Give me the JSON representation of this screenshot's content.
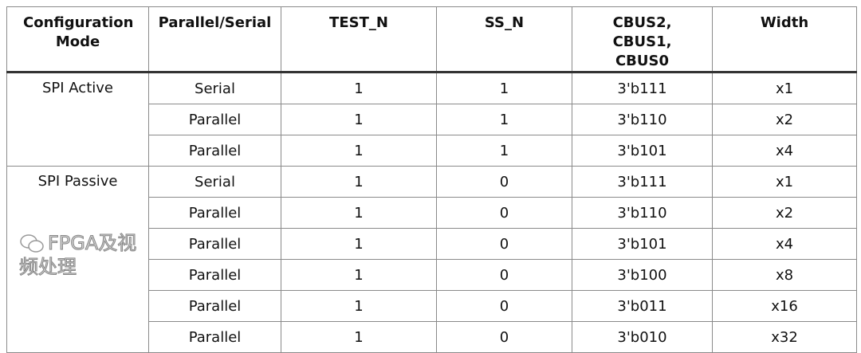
{
  "headers": [
    "Configuration Mode",
    "Parallel/Serial",
    "TEST_N",
    "SS_N",
    "CBUS2, CBUS1, CBUS0",
    "Width"
  ],
  "groups": [
    {
      "mode": "SPI Active",
      "rows": [
        [
          "Serial",
          "1",
          "1",
          "3'b111",
          "x1"
        ],
        [
          "Parallel",
          "1",
          "1",
          "3'b110",
          "x2"
        ],
        [
          "Parallel",
          "1",
          "1",
          "3'b101",
          "x4"
        ]
      ]
    },
    {
      "mode": "SPI Passive",
      "rows": [
        [
          "Serial",
          "1",
          "0",
          "3'b111",
          "x1"
        ],
        [
          "Parallel",
          "1",
          "0",
          "3'b110",
          "x2"
        ],
        [
          "Parallel",
          "1",
          "0",
          "3'b101",
          "x4"
        ],
        [
          "Parallel",
          "1",
          "0",
          "3'b100",
          "x8"
        ],
        [
          "Parallel",
          "1",
          "0",
          "3'b011",
          "x16"
        ],
        [
          "Parallel",
          "1",
          "0",
          "3'b010",
          "x32"
        ]
      ]
    }
  ],
  "watermark": "FPGA及视频处理"
}
